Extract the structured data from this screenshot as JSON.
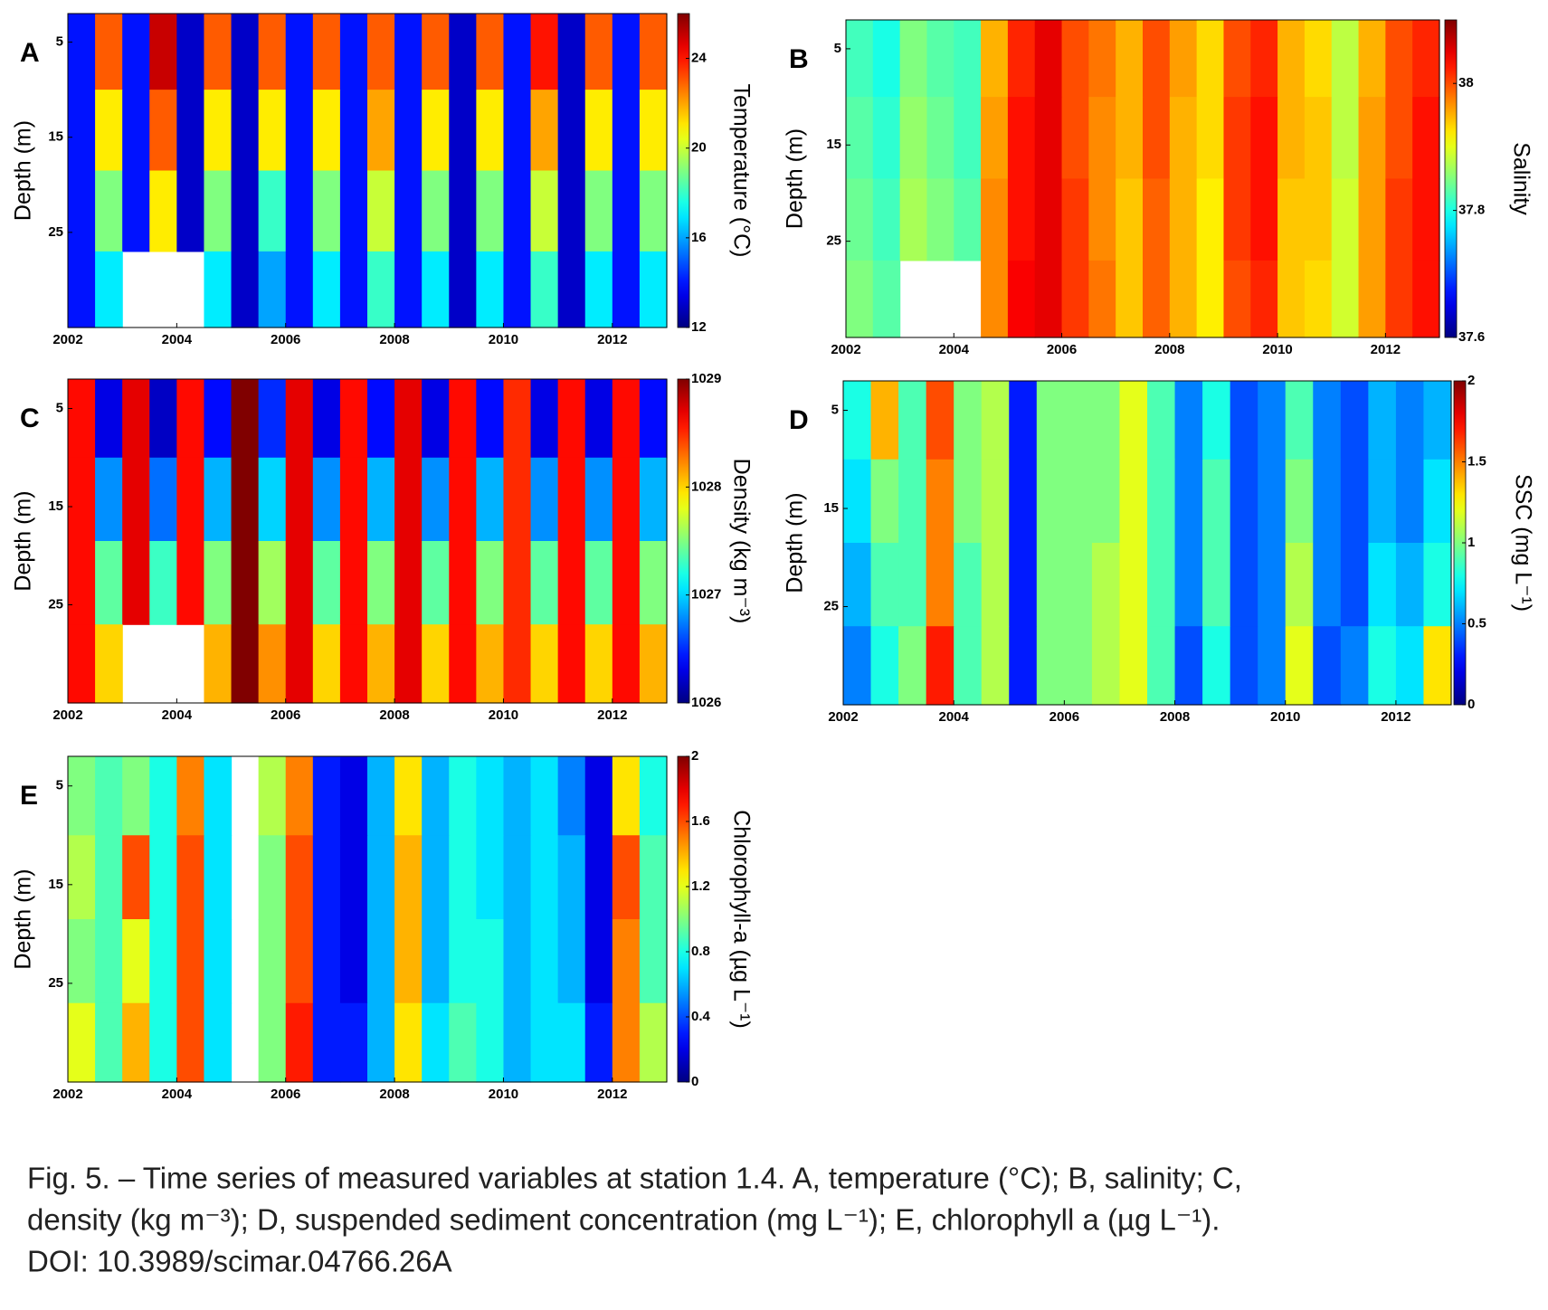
{
  "chart_data": [
    {
      "type": "heatmap",
      "panel_label": "A",
      "y_label": "Depth (m)",
      "colorbar_label": "Temperature (°C)",
      "xlim": [
        2002,
        2013
      ],
      "xticks": [
        2002,
        2004,
        2006,
        2008,
        2010,
        2012
      ],
      "ylim": [
        2,
        35
      ],
      "yticks": [
        5,
        15,
        25
      ],
      "clim": [
        12,
        26
      ],
      "cticks": [
        12,
        16,
        20,
        24
      ],
      "x": [
        2002.25,
        2002.75,
        2003.25,
        2003.75,
        2004.25,
        2004.75,
        2005.25,
        2005.75,
        2006.25,
        2006.75,
        2007.25,
        2007.75,
        2008.25,
        2008.75,
        2009.25,
        2009.75,
        2010.25,
        2010.75,
        2011.25,
        2011.75,
        2012.25,
        2012.75
      ],
      "y": [
        6,
        14,
        23,
        31
      ],
      "z": [
        [
          14,
          23,
          14,
          25,
          13,
          23,
          13,
          23,
          14,
          23,
          14,
          23,
          14,
          23,
          13,
          23,
          14,
          24,
          13,
          23,
          14,
          23
        ],
        [
          14,
          21,
          14,
          23,
          13,
          21,
          13,
          21,
          14,
          21,
          14,
          22,
          14,
          21,
          13,
          21,
          14,
          22,
          13,
          21,
          14,
          21
        ],
        [
          14,
          19,
          14,
          21,
          13,
          19,
          13,
          18,
          14,
          19,
          14,
          20,
          14,
          19,
          13,
          19,
          14,
          20,
          13,
          19,
          14,
          19
        ],
        [
          14,
          17,
          null,
          null,
          null,
          17,
          13,
          16,
          14,
          17,
          14,
          18,
          14,
          17,
          13,
          17,
          14,
          18,
          13,
          17,
          14,
          17
        ]
      ]
    },
    {
      "type": "heatmap",
      "panel_label": "B",
      "y_label": "Depth (m)",
      "colorbar_label": "Salinity",
      "xlim": [
        2002,
        2013
      ],
      "xticks": [
        2002,
        2004,
        2006,
        2008,
        2010,
        2012
      ],
      "ylim": [
        2,
        35
      ],
      "yticks": [
        5,
        15,
        25
      ],
      "clim": [
        37.6,
        38.1
      ],
      "cticks": [
        37.6,
        37.8,
        38
      ],
      "x": [
        2002.25,
        2002.75,
        2003.25,
        2003.75,
        2004.25,
        2004.75,
        2005.25,
        2005.75,
        2006.25,
        2006.75,
        2007.25,
        2007.75,
        2008.25,
        2008.75,
        2009.25,
        2009.75,
        2010.25,
        2010.75,
        2011.25,
        2011.75,
        2012.25,
        2012.75
      ],
      "y": [
        6,
        14,
        23,
        31
      ],
      "z": [
        [
          37.82,
          37.8,
          37.85,
          37.83,
          37.82,
          37.95,
          38.02,
          38.05,
          38.0,
          37.98,
          37.95,
          38.0,
          37.96,
          37.93,
          38.0,
          38.02,
          37.95,
          37.93,
          37.88,
          37.95,
          38.0,
          38.02
        ],
        [
          37.83,
          37.81,
          37.86,
          37.84,
          37.82,
          37.96,
          38.03,
          38.05,
          38.0,
          37.97,
          37.95,
          38.0,
          37.95,
          37.93,
          38.01,
          38.03,
          37.95,
          37.94,
          37.88,
          37.96,
          38.0,
          38.03
        ],
        [
          37.84,
          37.82,
          37.87,
          37.85,
          37.83,
          37.97,
          38.03,
          38.05,
          38.01,
          37.97,
          37.94,
          37.99,
          37.95,
          37.92,
          38.01,
          38.03,
          37.94,
          37.94,
          37.89,
          37.96,
          38.01,
          38.03
        ],
        [
          37.85,
          37.83,
          null,
          null,
          null,
          37.97,
          38.04,
          38.05,
          38.01,
          37.98,
          37.94,
          37.99,
          37.95,
          37.92,
          38.0,
          38.02,
          37.94,
          37.93,
          37.89,
          37.96,
          38.01,
          38.03
        ]
      ]
    },
    {
      "type": "heatmap",
      "panel_label": "C",
      "y_label": "Depth (m)",
      "colorbar_label": "Density (kg m⁻³)",
      "xlim": [
        2002,
        2013
      ],
      "xticks": [
        2002,
        2004,
        2006,
        2008,
        2010,
        2012
      ],
      "ylim": [
        2,
        35
      ],
      "yticks": [
        5,
        15,
        25
      ],
      "clim": [
        1026,
        1029
      ],
      "cticks": [
        1026,
        1027,
        1028,
        1029
      ],
      "x": [
        2002.25,
        2002.75,
        2003.25,
        2003.75,
        2004.25,
        2004.75,
        2005.25,
        2005.75,
        2006.25,
        2006.75,
        2007.25,
        2007.75,
        2008.25,
        2008.75,
        2009.25,
        2009.75,
        2010.25,
        2010.75,
        2011.25,
        2011.75,
        2012.25,
        2012.75
      ],
      "y": [
        6,
        14,
        23,
        31
      ],
      "z": [
        [
          1028.6,
          1026.3,
          1028.7,
          1026.2,
          1028.6,
          1026.4,
          1029,
          1026.5,
          1028.7,
          1026.3,
          1028.6,
          1026.4,
          1028.7,
          1026.3,
          1028.6,
          1026.4,
          1028.5,
          1026.3,
          1028.6,
          1026.3,
          1028.6,
          1026.4
        ],
        [
          1028.6,
          1026.8,
          1028.7,
          1026.7,
          1028.6,
          1026.9,
          1029,
          1027.0,
          1028.7,
          1026.8,
          1028.6,
          1026.9,
          1028.7,
          1026.8,
          1028.6,
          1026.9,
          1028.5,
          1026.8,
          1028.6,
          1026.8,
          1028.6,
          1026.9
        ],
        [
          1028.6,
          1027.4,
          1028.7,
          1027.3,
          1028.6,
          1027.5,
          1029,
          1027.6,
          1028.7,
          1027.4,
          1028.6,
          1027.5,
          1028.7,
          1027.4,
          1028.6,
          1027.5,
          1028.5,
          1027.4,
          1028.6,
          1027.4,
          1028.6,
          1027.5
        ],
        [
          1028.6,
          1028.0,
          null,
          null,
          null,
          1028.1,
          1029,
          1028.2,
          1028.7,
          1028.0,
          1028.6,
          1028.1,
          1028.7,
          1028.0,
          1028.6,
          1028.1,
          1028.5,
          1028.0,
          1028.6,
          1028.0,
          1028.6,
          1028.1
        ]
      ]
    },
    {
      "type": "heatmap",
      "panel_label": "D",
      "y_label": "Depth (m)",
      "colorbar_label": "SSC (mg L⁻¹)",
      "xlim": [
        2002,
        2013
      ],
      "xticks": [
        2002,
        2004,
        2006,
        2008,
        2010,
        2012
      ],
      "ylim": [
        2,
        35
      ],
      "yticks": [
        5,
        15,
        25
      ],
      "clim": [
        0,
        2
      ],
      "cticks": [
        0,
        0.5,
        1,
        1.5,
        2
      ],
      "x": [
        2002.25,
        2002.75,
        2003.25,
        2003.75,
        2004.25,
        2004.75,
        2005.25,
        2005.75,
        2006.25,
        2006.75,
        2007.25,
        2007.75,
        2008.25,
        2008.75,
        2009.25,
        2009.75,
        2010.25,
        2010.75,
        2011.25,
        2011.75,
        2012.25,
        2012.75
      ],
      "y": [
        6,
        14,
        23,
        31
      ],
      "z": [
        [
          0.8,
          1.4,
          0.9,
          1.6,
          1.0,
          1.1,
          0.3,
          1.0,
          1.0,
          1.0,
          1.2,
          0.9,
          0.5,
          0.8,
          0.4,
          0.5,
          0.9,
          0.5,
          0.4,
          0.6,
          0.5,
          0.6
        ],
        [
          0.7,
          1.0,
          0.9,
          1.5,
          1.0,
          1.1,
          0.3,
          1.0,
          1.0,
          1.0,
          1.2,
          0.9,
          0.5,
          0.9,
          0.4,
          0.5,
          1.0,
          0.5,
          0.4,
          0.6,
          0.5,
          0.7
        ],
        [
          0.6,
          0.9,
          0.9,
          1.5,
          0.9,
          1.1,
          0.3,
          1.0,
          1.0,
          1.1,
          1.2,
          0.9,
          0.5,
          0.9,
          0.4,
          0.5,
          1.1,
          0.5,
          0.4,
          0.7,
          0.6,
          0.8
        ],
        [
          0.5,
          0.8,
          1.0,
          1.7,
          0.9,
          1.1,
          0.3,
          1.0,
          1.0,
          1.1,
          1.2,
          0.9,
          0.4,
          0.8,
          0.4,
          0.5,
          1.2,
          0.4,
          0.5,
          0.8,
          0.7,
          1.3
        ]
      ]
    },
    {
      "type": "heatmap",
      "panel_label": "E",
      "y_label": "Depth (m)",
      "colorbar_label": "Chlorophyll-a (µg L⁻¹)",
      "xlim": [
        2002,
        2013
      ],
      "xticks": [
        2002,
        2004,
        2006,
        2008,
        2010,
        2012
      ],
      "ylim": [
        2,
        35
      ],
      "yticks": [
        5,
        15,
        25
      ],
      "clim": [
        0,
        2
      ],
      "cticks": [
        0,
        0.4,
        0.8,
        1.2,
        1.6,
        2
      ],
      "x": [
        2002.25,
        2002.75,
        2003.25,
        2003.75,
        2004.25,
        2004.75,
        2005.25,
        2005.75,
        2006.25,
        2006.75,
        2007.25,
        2007.75,
        2008.25,
        2008.75,
        2009.25,
        2009.75,
        2010.25,
        2010.75,
        2011.25,
        2011.75,
        2012.25,
        2012.75
      ],
      "y": [
        6,
        14,
        23,
        31
      ],
      "z": [
        [
          1.0,
          0.9,
          1.0,
          0.8,
          1.5,
          0.7,
          null,
          1.1,
          1.5,
          0.3,
          0.2,
          0.6,
          1.3,
          0.6,
          0.8,
          0.7,
          0.6,
          0.7,
          0.5,
          0.2,
          1.3,
          0.8
        ],
        [
          1.1,
          0.9,
          1.6,
          0.8,
          1.6,
          0.7,
          null,
          1.0,
          1.6,
          0.3,
          0.2,
          0.6,
          1.4,
          0.6,
          0.8,
          0.7,
          0.6,
          0.7,
          0.6,
          0.2,
          1.6,
          0.9
        ],
        [
          1.0,
          0.9,
          1.2,
          0.8,
          1.6,
          0.7,
          null,
          1.0,
          1.6,
          0.3,
          0.2,
          0.6,
          1.4,
          0.6,
          0.8,
          0.8,
          0.6,
          0.7,
          0.6,
          0.2,
          1.5,
          0.9
        ],
        [
          1.2,
          0.9,
          1.4,
          0.8,
          1.6,
          0.7,
          null,
          1.0,
          1.7,
          0.3,
          0.3,
          0.6,
          1.3,
          0.7,
          0.9,
          0.8,
          0.6,
          0.7,
          0.7,
          0.3,
          1.5,
          1.1
        ]
      ]
    }
  ],
  "caption": [
    "Fig. 5. – Time series of measured variables at station 1.4. A, temperature (°C); B, salinity; C,",
    "density (kg m⁻³); D, suspended sediment concentration (mg L⁻¹); E, chlorophyll a (µg L⁻¹).",
    "DOI: 10.3989/scimar.04766.26A"
  ]
}
